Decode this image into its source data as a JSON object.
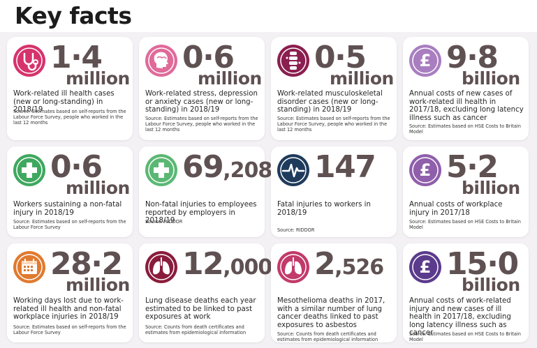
{
  "page": {
    "title": "Key facts"
  },
  "colors": {
    "pink": "#d6336c",
    "purple_dark": "#8b1f4f",
    "lilac": "#a97ec0",
    "green": "#4caf6a",
    "navy": "#1f3b5c",
    "orange": "#e07a2f",
    "maroon": "#8a1c3c",
    "deep_purple": "#5b3b8c",
    "number_color": "#5f5152"
  },
  "cards": [
    {
      "icon": "stethoscope-icon",
      "number": "1·4",
      "unit": "million",
      "desc": "Work-related ill health cases (new or long-standing) in 2018/19",
      "source": "Source: Estimates based on self-reports from the Labour Force Survey, people who worked in the last 12 months"
    },
    {
      "icon": "head-icon",
      "number": "0·6",
      "unit": "million",
      "desc": "Work-related stress, depression or anxiety cases (new or long-standing) in 2018/19",
      "source": "Source: Estimates based on self-reports from the Labour Force Survey, people who worked in the last 12 months"
    },
    {
      "icon": "spine-icon",
      "number": "0·5",
      "unit": "million",
      "desc": "Work-related musculoskeletal disorder cases (new or long-standing) in 2018/19",
      "source": "Source: Estimates based on self-reports from the Labour Force Survey, people who worked in the last 12 months"
    },
    {
      "icon": "pound-icon",
      "number": "9·8",
      "unit": "billion",
      "desc": "Annual costs of new cases of work-related ill health in 2017/18, excluding long latency illness such as cancer",
      "source": "Source: Estimates based on HSE Costs to Britain Model"
    },
    {
      "icon": "first-aid-cross-icon",
      "number": "0·6",
      "unit": "million",
      "desc": "Workers sustaining a non-fatal injury in 2018/19",
      "source": "Source: Estimates based on self-reports from the Labour Force Survey"
    },
    {
      "icon": "first-aid-cross-icon",
      "number_big": "69",
      "number_small": ",208",
      "unit": "",
      "desc": "Non-fatal injuries to employees reported by employers in 2018/19",
      "source": "Source: RIDDOR"
    },
    {
      "icon": "heartbeat-icon",
      "number": "147",
      "unit": "",
      "desc": "Fatal injuries to workers in 2018/19",
      "source": "Source: RIDDOR"
    },
    {
      "icon": "pound-icon",
      "number": "5·2",
      "unit": "billion",
      "desc": "Annual costs of workplace injury in 2017/18",
      "source": "Source: Estimates based on HSE Costs to Britain Model"
    },
    {
      "icon": "calendar-icon",
      "number": "28·2",
      "unit": "million",
      "desc": "Working days lost due to work-related ill health and non-fatal workplace injuries in 2018/19",
      "source": "Source: Estimates based on self-reports from the Labour Force Survey"
    },
    {
      "icon": "lungs-icon",
      "number_big": "12",
      "number_small": ",000",
      "unit": "",
      "desc": "Lung disease deaths each year estimated to be linked to past exposures at work",
      "source": "Source: Counts from death certificates and estimates from epidemiological information"
    },
    {
      "icon": "lungs-icon",
      "number_big": "2",
      "number_small": ",526",
      "unit": "",
      "desc": "Mesothelioma deaths in 2017, with a similar number of lung cancer deaths linked to past exposures to asbestos",
      "source": "Source: Counts from death certificates and estimates from epidemiological information"
    },
    {
      "icon": "pound-icon",
      "number": "15·0",
      "unit": "billion",
      "desc": "Annual costs of work-related injury and new cases of ill health in 2017/18, excluding long latency illness such as cancer",
      "source": "Source: Estimates based on HSE Costs to Britain Model"
    }
  ]
}
